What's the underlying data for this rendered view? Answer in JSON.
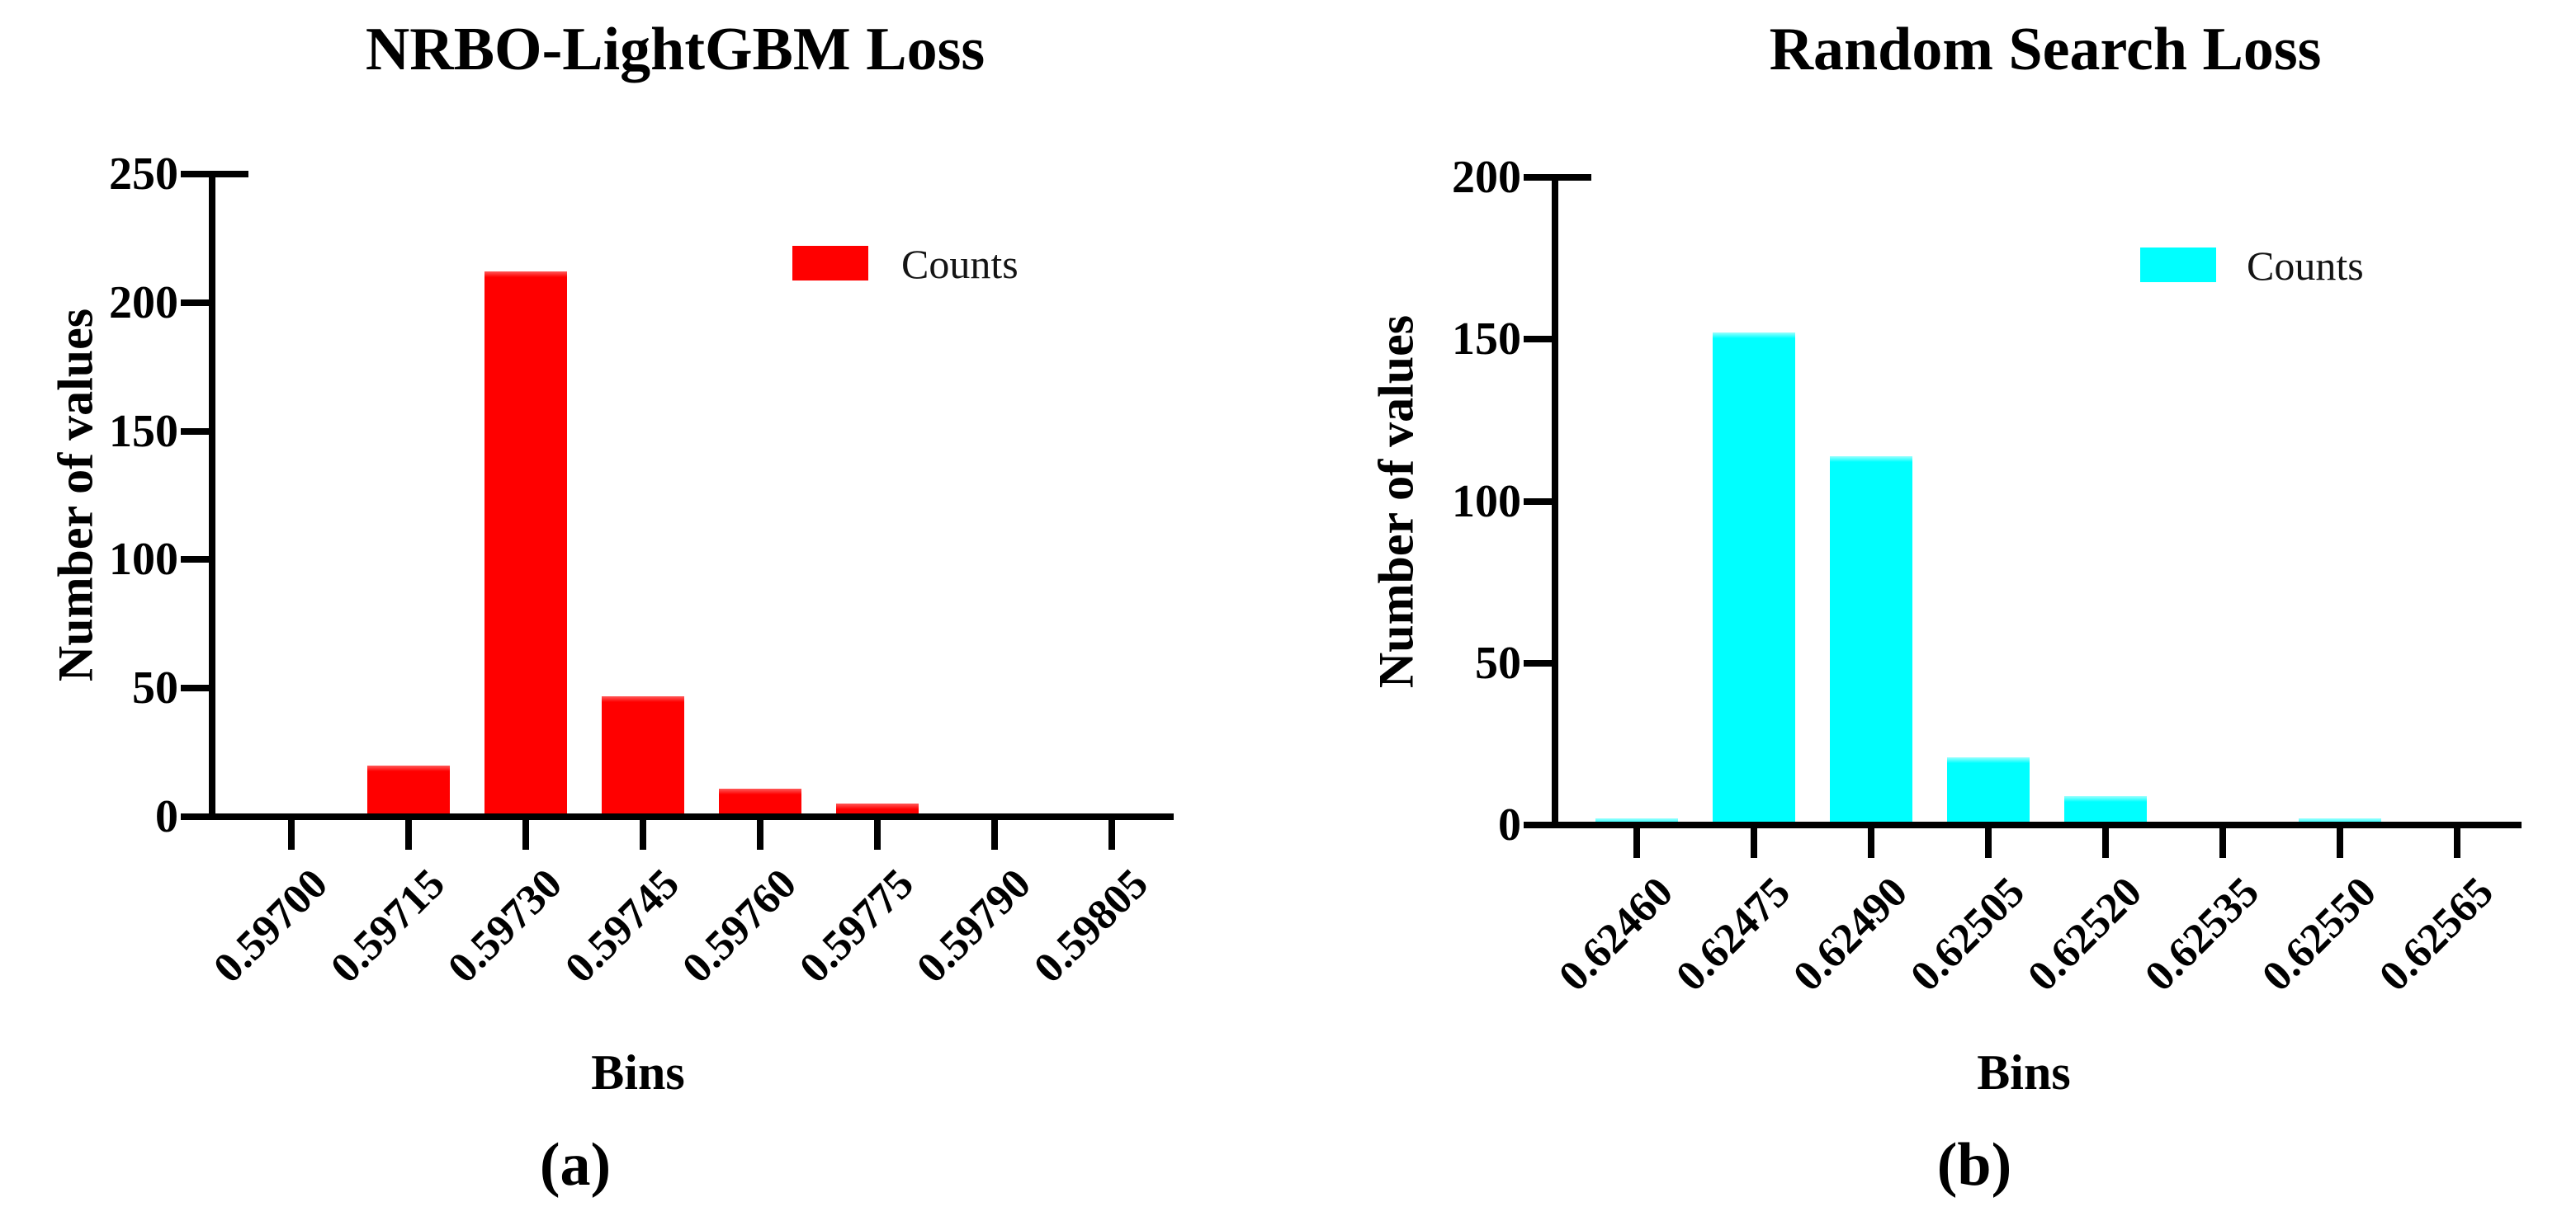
{
  "figure": {
    "panel_labels": [
      "(a)",
      "(b)"
    ]
  },
  "chart_data": [
    {
      "type": "bar",
      "title": "NRBO-LightGBM Loss",
      "xlabel": "Bins",
      "ylabel": "Number of values",
      "categories": [
        "0.59700",
        "0.59715",
        "0.59730",
        "0.59745",
        "0.59760",
        "0.59775",
        "0.59790",
        "0.59805"
      ],
      "values": [
        0,
        20,
        212,
        47,
        11,
        5,
        0,
        0
      ],
      "legend": {
        "label": "Counts",
        "position": "upper right"
      },
      "ylim": [
        0,
        250
      ],
      "yticks": [
        0,
        50,
        100,
        150,
        200,
        250
      ],
      "grid": false,
      "bar_color": "#ff0000",
      "bar_color_top": "#ff5a5a",
      "panel_label": "(a)"
    },
    {
      "type": "bar",
      "title": "Random Search Loss",
      "xlabel": "Bins",
      "ylabel": "Number of values",
      "categories": [
        "0.62460",
        "0.62475",
        "0.62490",
        "0.62505",
        "0.62520",
        "0.62535",
        "0.62550",
        "0.62565"
      ],
      "values": [
        2,
        152,
        114,
        21,
        9,
        0,
        2,
        0
      ],
      "legend": {
        "label": "Counts",
        "position": "upper right"
      },
      "ylim": [
        0,
        200
      ],
      "yticks": [
        0,
        50,
        100,
        150,
        200
      ],
      "grid": false,
      "bar_color": "#00ffff",
      "bar_color_top": "#9bfffe",
      "panel_label": "(b)"
    }
  ]
}
